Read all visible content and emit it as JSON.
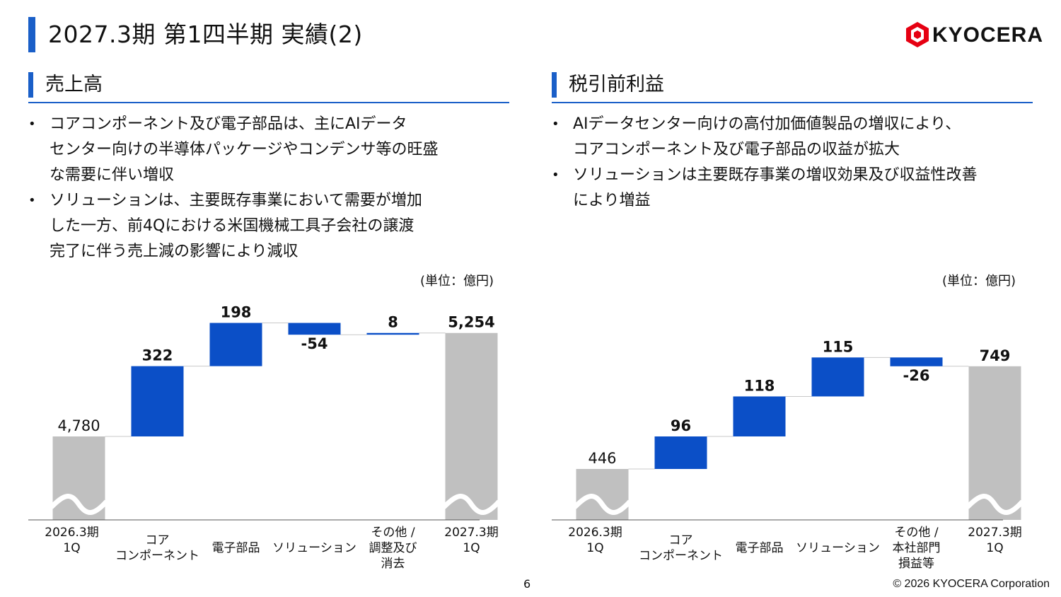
{
  "page_title": "2027.3期 第1四半期 実績(2)",
  "logo": {
    "text": "KYOCERA",
    "mark_color": "#e60012"
  },
  "colors": {
    "accent": "#1a5fc8",
    "increase_bar": "#0b4fc7",
    "base_bar": "#c0c0c0"
  },
  "sections": {
    "left": {
      "title": "売上高",
      "bullets": [
        [
          "コアコンポーネント及び電子部品は、主にAIデータ",
          "センター向けの半導体パッケージやコンデンサ等の旺盛",
          "な需要に伴い増収"
        ],
        [
          "ソリューションは、主要既存事業において需要が増加",
          "した一方、前4Qにおける米国機械工具子会社の譲渡",
          "完了に伴う売上減の影響により減収"
        ]
      ],
      "unit": "(単位：億円)"
    },
    "right": {
      "title": "税引前利益",
      "bullets": [
        [
          "AIデータセンター向けの高付加価値製品の増収により、",
          "コアコンポーネント及び電子部品の収益が拡大"
        ],
        [
          "ソリューションは主要既存事業の増収効果及び収益性改善",
          "により増益"
        ]
      ],
      "unit": "(単位：億円)"
    }
  },
  "chart_data": [
    {
      "type": "bar",
      "subtype": "waterfall",
      "title": "売上高",
      "unit": "億円",
      "axis_break": true,
      "categories": [
        [
          "2026.3期",
          "1Q"
        ],
        [
          "コア",
          "コンポーネント"
        ],
        [
          "電子部品"
        ],
        [
          "ソリューション"
        ],
        [
          "その他 /",
          "調整及び",
          "消去"
        ],
        [
          "2027.3期",
          "1Q"
        ]
      ],
      "kinds": [
        "total",
        "delta",
        "delta",
        "delta",
        "delta",
        "total"
      ],
      "values": [
        4780,
        322,
        198,
        -54,
        8,
        5254
      ],
      "labels": [
        "4,780",
        "322",
        "198",
        "-54",
        "8",
        "5,254"
      ]
    },
    {
      "type": "bar",
      "subtype": "waterfall",
      "title": "税引前利益",
      "unit": "億円",
      "axis_break": true,
      "categories": [
        [
          "2026.3期",
          "1Q"
        ],
        [
          "コア",
          "コンポーネント"
        ],
        [
          "電子部品"
        ],
        [
          "ソリューション"
        ],
        [
          "その他 /",
          "本社部門",
          "損益等"
        ],
        [
          "2027.3期",
          "1Q"
        ]
      ],
      "kinds": [
        "total",
        "delta",
        "delta",
        "delta",
        "delta",
        "total"
      ],
      "values": [
        446,
        96,
        118,
        115,
        -26,
        749
      ],
      "labels": [
        "446",
        "96",
        "118",
        "115",
        "-26",
        "749"
      ]
    }
  ],
  "footer": {
    "page_number": "6",
    "copyright": "© 2026 KYOCERA Corporation"
  }
}
